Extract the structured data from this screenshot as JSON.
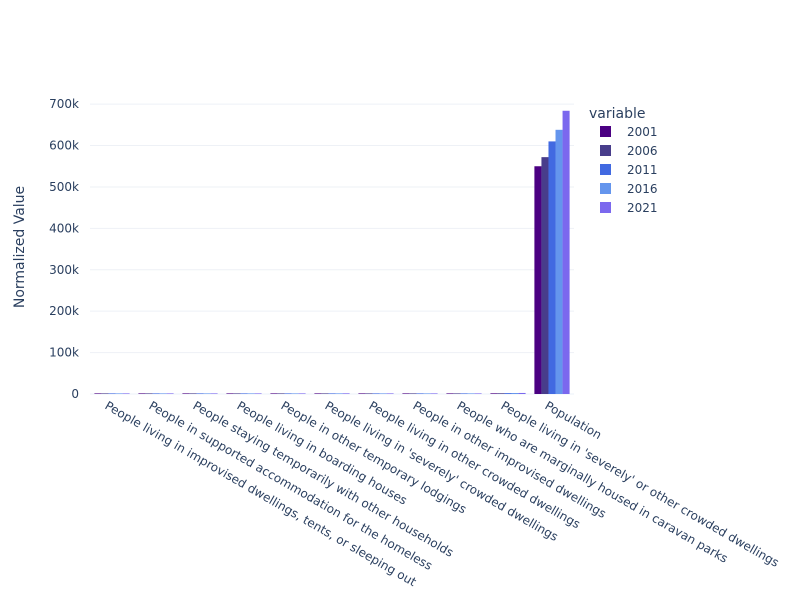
{
  "chart_data": {
    "type": "bar",
    "ylabel": "Normalized Value",
    "legend_title": "variable",
    "legend_position": "right",
    "ylim": [
      0,
      710000
    ],
    "yticks": [
      0,
      100000,
      200000,
      300000,
      400000,
      500000,
      600000,
      700000
    ],
    "ytick_labels": [
      "0",
      "100k",
      "200k",
      "300k",
      "400k",
      "500k",
      "600k",
      "700k"
    ],
    "grid": true,
    "categories": [
      "People living in improvised dwellings, tents, or sleeping out",
      "People in supported accommodation for the homeless",
      "People staying temporarily with other households",
      "People living in boarding houses",
      "People in other temporary lodgings",
      "People living in 'severely' crowded dwellings",
      "People living in other crowded dwellings",
      "People in other improvised dwellings",
      "People who are marginally housed in caravan parks",
      "People living in 'severely' or other crowded dwellings",
      "Population"
    ],
    "series": [
      {
        "name": "2001",
        "color": "#4b0082",
        "values": [
          80,
          300,
          200,
          220,
          10,
          900,
          700,
          150,
          200,
          1600,
          550000
        ]
      },
      {
        "name": "2006",
        "color": "#483d8b",
        "values": [
          80,
          320,
          210,
          210,
          10,
          1000,
          750,
          140,
          190,
          1750,
          572000
        ]
      },
      {
        "name": "2011",
        "color": "#4169e1",
        "values": [
          85,
          380,
          220,
          240,
          10,
          1300,
          800,
          130,
          180,
          2100,
          610000
        ]
      },
      {
        "name": "2016",
        "color": "#6495ed",
        "values": [
          90,
          400,
          240,
          250,
          10,
          1500,
          850,
          120,
          170,
          2350,
          638000
        ]
      },
      {
        "name": "2021",
        "color": "#7b68ee",
        "values": [
          85,
          420,
          230,
          245,
          10,
          1600,
          900,
          110,
          160,
          2500,
          684000
        ]
      }
    ]
  }
}
